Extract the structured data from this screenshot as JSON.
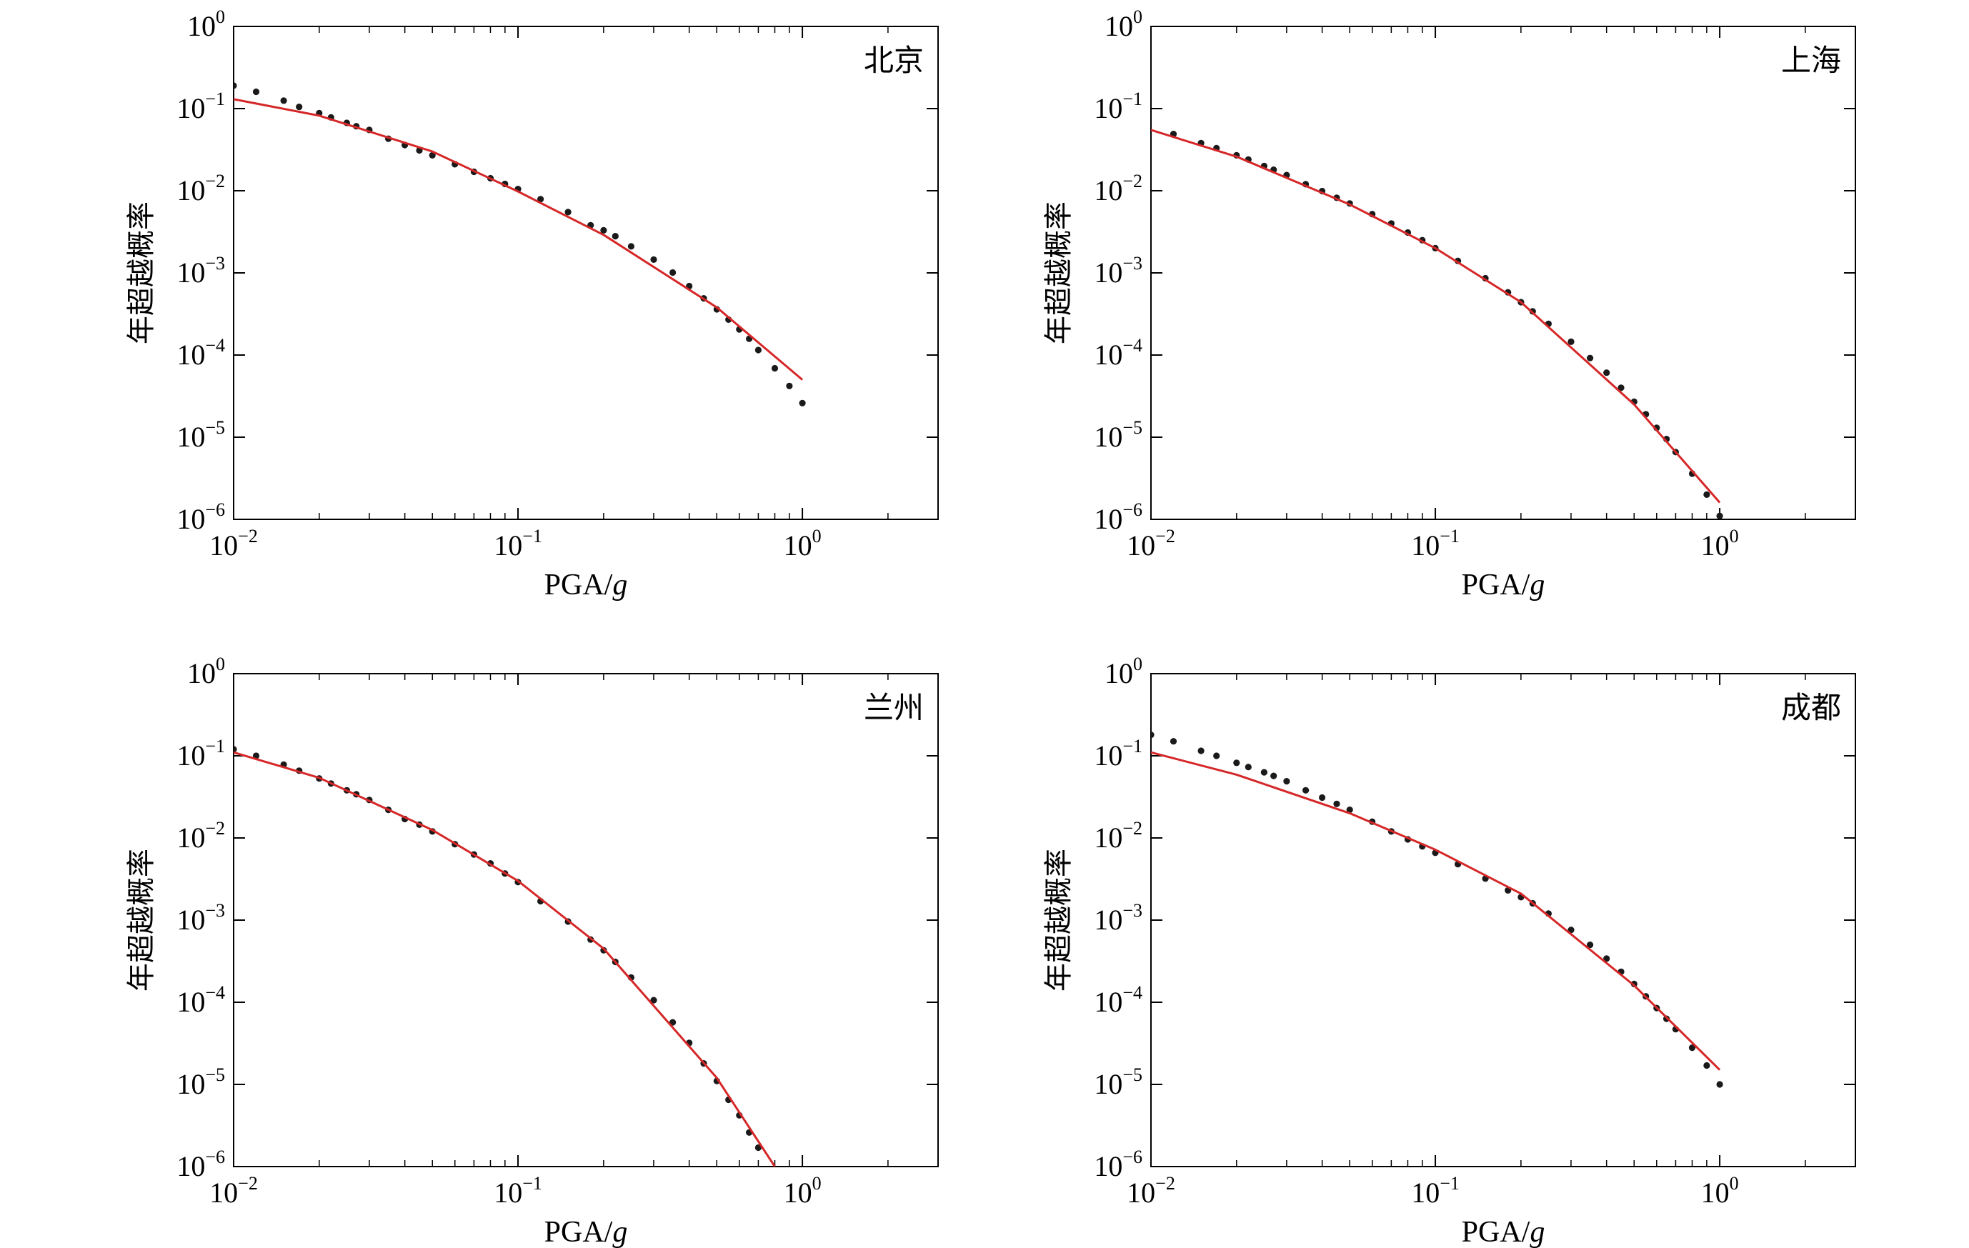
{
  "chart_data": [
    {
      "type": "scatter",
      "title": "北京",
      "xlabel_main": "PGA/",
      "xlabel_italic": "g",
      "ylabel": "年超越概率",
      "x_scale": "log",
      "y_scale": "log",
      "xlim": [
        0.01,
        3.0
      ],
      "ylim": [
        1e-06,
        1
      ],
      "x_ticks": [
        {
          "mant": "10",
          "exp": "−2",
          "v": 0.01
        },
        {
          "mant": "10",
          "exp": "−1",
          "v": 0.1
        },
        {
          "mant": "10",
          "exp": "0",
          "v": 1
        }
      ],
      "y_ticks": [
        {
          "mant": "10",
          "exp": "0",
          "v": 1
        },
        {
          "mant": "10",
          "exp": "−1",
          "v": 0.1
        },
        {
          "mant": "10",
          "exp": "−2",
          "v": 0.01
        },
        {
          "mant": "10",
          "exp": "−3",
          "v": 0.001
        },
        {
          "mant": "10",
          "exp": "−4",
          "v": 0.0001
        },
        {
          "mant": "10",
          "exp": "−5",
          "v": 1e-05
        },
        {
          "mant": "10",
          "exp": "−6",
          "v": 1e-06
        }
      ],
      "series": [
        {
          "kind": "points",
          "color": "#1a1a1a",
          "x": [
            0.01,
            0.012,
            0.015,
            0.017,
            0.02,
            0.022,
            0.025,
            0.027,
            0.03,
            0.035,
            0.04,
            0.045,
            0.05,
            0.06,
            0.07,
            0.08,
            0.09,
            0.1,
            0.12,
            0.15,
            0.18,
            0.2,
            0.22,
            0.25,
            0.3,
            0.35,
            0.4,
            0.45,
            0.5,
            0.55,
            0.6,
            0.65,
            0.7,
            0.8,
            0.9,
            1.0
          ],
          "y": [
            0.19,
            0.16,
            0.125,
            0.105,
            0.088,
            0.078,
            0.067,
            0.061,
            0.055,
            0.043,
            0.036,
            0.031,
            0.027,
            0.021,
            0.017,
            0.0142,
            0.0121,
            0.0105,
            0.0079,
            0.0055,
            0.0038,
            0.0033,
            0.0028,
            0.0021,
            0.00145,
            0.00101,
            0.00069,
            0.00049,
            0.00036,
            0.00027,
            0.000205,
            0.000158,
            0.000115,
            6.9e-05,
            4.2e-05,
            2.6e-05
          ]
        },
        {
          "kind": "line",
          "color": "#d62728",
          "x": [
            0.01,
            0.02,
            0.05,
            0.1,
            0.2,
            0.5,
            1.0
          ],
          "y": [
            0.13,
            0.082,
            0.03,
            0.0098,
            0.0029,
            0.00038,
            5e-05
          ]
        }
      ]
    },
    {
      "type": "scatter",
      "title": "上海",
      "xlabel_main": "PGA/",
      "xlabel_italic": "g",
      "ylabel": "年超越概率",
      "x_scale": "log",
      "y_scale": "log",
      "xlim": [
        0.01,
        3.0
      ],
      "ylim": [
        1e-06,
        1
      ],
      "x_ticks": [
        {
          "mant": "10",
          "exp": "−2",
          "v": 0.01
        },
        {
          "mant": "10",
          "exp": "−1",
          "v": 0.1
        },
        {
          "mant": "10",
          "exp": "0",
          "v": 1
        }
      ],
      "y_ticks": [
        {
          "mant": "10",
          "exp": "0",
          "v": 1
        },
        {
          "mant": "10",
          "exp": "−1",
          "v": 0.1
        },
        {
          "mant": "10",
          "exp": "−2",
          "v": 0.01
        },
        {
          "mant": "10",
          "exp": "−3",
          "v": 0.001
        },
        {
          "mant": "10",
          "exp": "−4",
          "v": 0.0001
        },
        {
          "mant": "10",
          "exp": "−5",
          "v": 1e-05
        },
        {
          "mant": "10",
          "exp": "−6",
          "v": 1e-06
        }
      ],
      "series": [
        {
          "kind": "points",
          "color": "#1a1a1a",
          "x": [
            0.012,
            0.015,
            0.017,
            0.02,
            0.022,
            0.025,
            0.027,
            0.03,
            0.035,
            0.04,
            0.045,
            0.05,
            0.06,
            0.07,
            0.08,
            0.09,
            0.1,
            0.12,
            0.15,
            0.18,
            0.2,
            0.22,
            0.25,
            0.3,
            0.35,
            0.4,
            0.45,
            0.5,
            0.55,
            0.6,
            0.65,
            0.7,
            0.8,
            0.9,
            1.0
          ],
          "y": [
            0.049,
            0.038,
            0.033,
            0.027,
            0.024,
            0.02,
            0.018,
            0.0155,
            0.012,
            0.0099,
            0.0082,
            0.007,
            0.0052,
            0.004,
            0.0031,
            0.0025,
            0.002,
            0.0014,
            0.00086,
            0.00058,
            0.00044,
            0.00034,
            0.00024,
            0.000145,
            9.2e-05,
            6.1e-05,
            4e-05,
            2.7e-05,
            1.9e-05,
            1.3e-05,
            9.5e-06,
            6.6e-06,
            3.6e-06,
            2e-06,
            1.1e-06
          ]
        },
        {
          "kind": "line",
          "color": "#d62728",
          "x": [
            0.01,
            0.02,
            0.05,
            0.1,
            0.2,
            0.5,
            1.0
          ],
          "y": [
            0.055,
            0.026,
            0.0068,
            0.002,
            0.00044,
            2.5e-05,
            1.6e-06
          ]
        }
      ]
    },
    {
      "type": "scatter",
      "title": "兰州",
      "xlabel_main": "PGA/",
      "xlabel_italic": "g",
      "ylabel": "年超越概率",
      "x_scale": "log",
      "y_scale": "log",
      "xlim": [
        0.01,
        3.0
      ],
      "ylim": [
        1e-06,
        1
      ],
      "x_ticks": [
        {
          "mant": "10",
          "exp": "−2",
          "v": 0.01
        },
        {
          "mant": "10",
          "exp": "−1",
          "v": 0.1
        },
        {
          "mant": "10",
          "exp": "0",
          "v": 1
        }
      ],
      "y_ticks": [
        {
          "mant": "10",
          "exp": "0",
          "v": 1
        },
        {
          "mant": "10",
          "exp": "−1",
          "v": 0.1
        },
        {
          "mant": "10",
          "exp": "−2",
          "v": 0.01
        },
        {
          "mant": "10",
          "exp": "−3",
          "v": 0.001
        },
        {
          "mant": "10",
          "exp": "−4",
          "v": 0.0001
        },
        {
          "mant": "10",
          "exp": "−5",
          "v": 1e-05
        },
        {
          "mant": "10",
          "exp": "−6",
          "v": 1e-06
        }
      ],
      "series": [
        {
          "kind": "points",
          "color": "#1a1a1a",
          "x": [
            0.01,
            0.012,
            0.015,
            0.017,
            0.02,
            0.022,
            0.025,
            0.027,
            0.03,
            0.035,
            0.04,
            0.045,
            0.05,
            0.06,
            0.07,
            0.08,
            0.09,
            0.1,
            0.12,
            0.15,
            0.18,
            0.2,
            0.22,
            0.25,
            0.3,
            0.35,
            0.4,
            0.45,
            0.5,
            0.55,
            0.6,
            0.65,
            0.7
          ],
          "y": [
            0.12,
            0.1,
            0.078,
            0.066,
            0.053,
            0.046,
            0.038,
            0.034,
            0.029,
            0.022,
            0.017,
            0.0145,
            0.012,
            0.0084,
            0.0063,
            0.0049,
            0.0037,
            0.0029,
            0.0017,
            0.00096,
            0.00058,
            0.00043,
            0.00031,
            0.0002,
            0.000106,
            5.7e-05,
            3.2e-05,
            1.8e-05,
            1.1e-05,
            6.5e-06,
            4.2e-06,
            2.6e-06,
            1.7e-06
          ]
        },
        {
          "kind": "line",
          "color": "#d62728",
          "x": [
            0.01,
            0.02,
            0.05,
            0.1,
            0.2,
            0.5,
            0.8
          ],
          "y": [
            0.11,
            0.054,
            0.0125,
            0.003,
            0.00045,
            1.2e-05,
            1e-06
          ]
        }
      ]
    },
    {
      "type": "scatter",
      "title": "成都",
      "xlabel_main": "PGA/",
      "xlabel_italic": "g",
      "ylabel": "年超越概率",
      "x_scale": "log",
      "y_scale": "log",
      "xlim": [
        0.01,
        3.0
      ],
      "ylim": [
        1e-06,
        1
      ],
      "x_ticks": [
        {
          "mant": "10",
          "exp": "−2",
          "v": 0.01
        },
        {
          "mant": "10",
          "exp": "−1",
          "v": 0.1
        },
        {
          "mant": "10",
          "exp": "0",
          "v": 1
        }
      ],
      "y_ticks": [
        {
          "mant": "10",
          "exp": "0",
          "v": 1
        },
        {
          "mant": "10",
          "exp": "−1",
          "v": 0.1
        },
        {
          "mant": "10",
          "exp": "−2",
          "v": 0.01
        },
        {
          "mant": "10",
          "exp": "−3",
          "v": 0.001
        },
        {
          "mant": "10",
          "exp": "−4",
          "v": 0.0001
        },
        {
          "mant": "10",
          "exp": "−5",
          "v": 1e-05
        },
        {
          "mant": "10",
          "exp": "−6",
          "v": 1e-06
        }
      ],
      "series": [
        {
          "kind": "points",
          "color": "#1a1a1a",
          "x": [
            0.01,
            0.012,
            0.015,
            0.017,
            0.02,
            0.022,
            0.025,
            0.027,
            0.03,
            0.035,
            0.04,
            0.045,
            0.05,
            0.06,
            0.07,
            0.08,
            0.09,
            0.1,
            0.12,
            0.15,
            0.18,
            0.2,
            0.22,
            0.25,
            0.3,
            0.35,
            0.4,
            0.45,
            0.5,
            0.55,
            0.6,
            0.65,
            0.7,
            0.8,
            0.9,
            1.0
          ],
          "y": [
            0.18,
            0.15,
            0.115,
            0.1,
            0.082,
            0.073,
            0.063,
            0.057,
            0.049,
            0.038,
            0.031,
            0.026,
            0.022,
            0.0158,
            0.012,
            0.0096,
            0.0079,
            0.0066,
            0.0048,
            0.0032,
            0.0023,
            0.0019,
            0.0016,
            0.0012,
            0.00076,
            0.0005,
            0.00034,
            0.000235,
            0.000167,
            0.000118,
            8.5e-05,
            6.3e-05,
            4.7e-05,
            2.8e-05,
            1.7e-05,
            1e-05
          ]
        },
        {
          "kind": "line",
          "color": "#d62728",
          "x": [
            0.01,
            0.02,
            0.05,
            0.1,
            0.2,
            0.5,
            1.0
          ],
          "y": [
            0.11,
            0.059,
            0.02,
            0.0072,
            0.0021,
            0.00016,
            1.5e-05
          ]
        }
      ]
    }
  ]
}
